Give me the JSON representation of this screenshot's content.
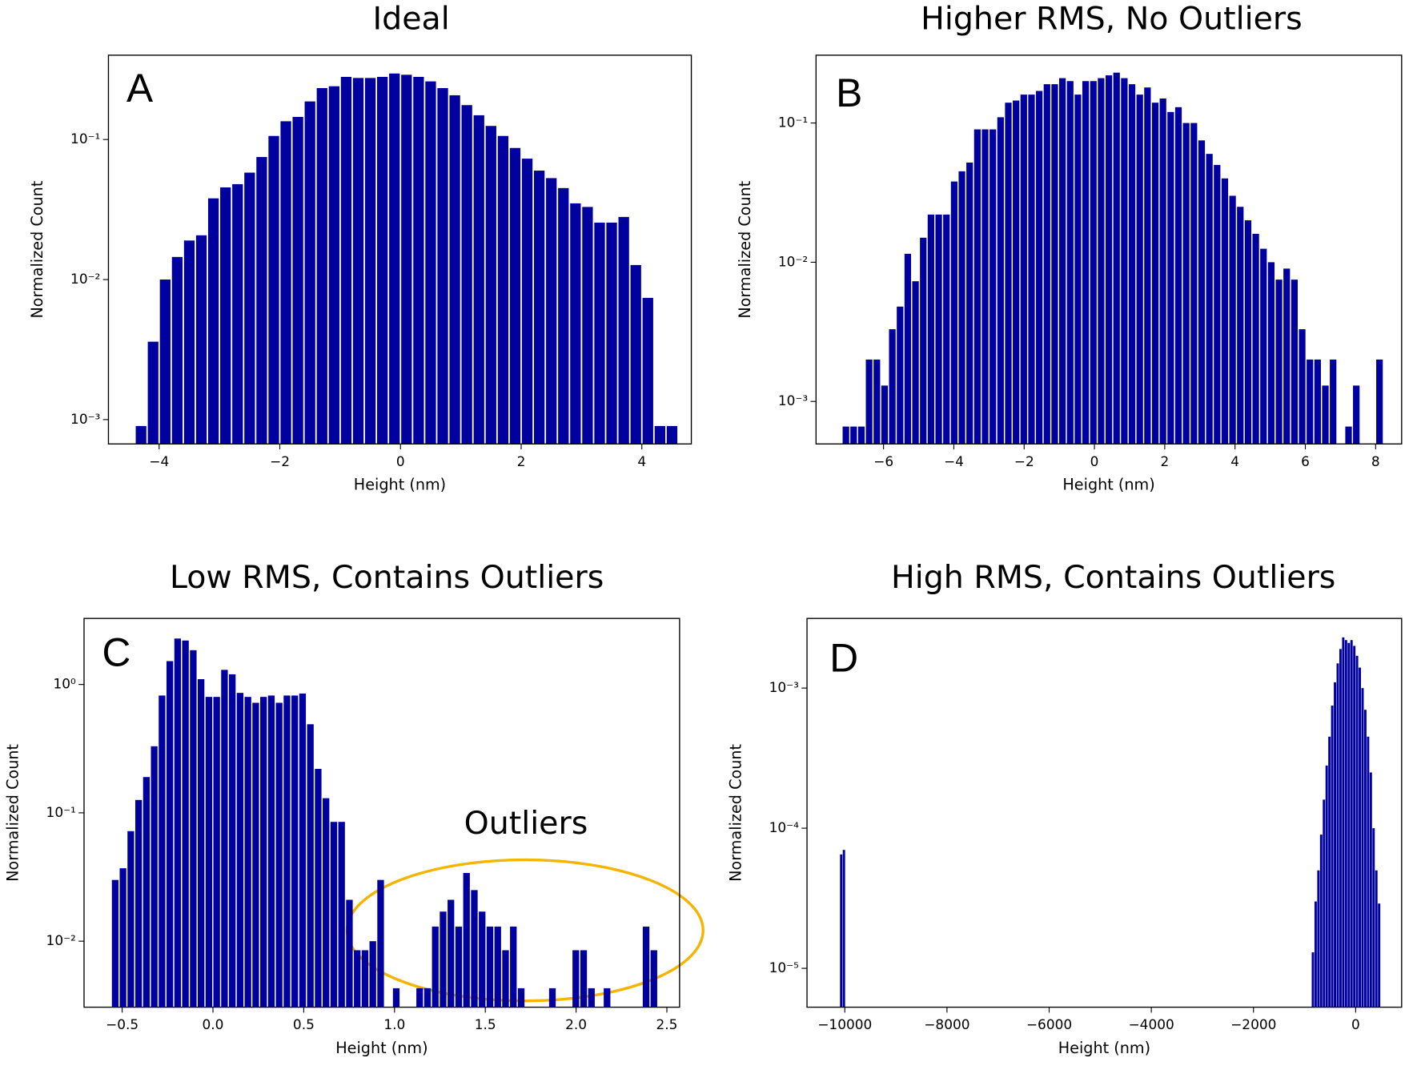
{
  "chart_data": [
    {
      "type": "histogram",
      "title": "Ideal",
      "panel_label": "A",
      "xlabel": "Height (nm)",
      "ylabel": "Normalized Count",
      "color": "#00009f",
      "log_y": true,
      "xlim": [
        -4.84,
        4.82
      ],
      "ylim": [
        0.00067,
        0.4
      ],
      "xticks": [
        {
          "value": -4,
          "label": "−4"
        },
        {
          "value": -2,
          "label": "−2"
        },
        0,
        2,
        4
      ],
      "yticks": [
        {
          "value": 0.001,
          "label": "10⁻³"
        },
        {
          "value": 0.01,
          "label": "10⁻²"
        },
        {
          "value": 0.1,
          "label": "10⁻¹"
        }
      ],
      "bins": [
        -4.4,
        -4.2,
        -4.0,
        -3.8,
        -3.6,
        -3.4,
        -3.2,
        -3.0,
        -2.8,
        -2.6,
        -2.4,
        -2.2,
        -2.0,
        -1.8,
        -1.6,
        -1.4,
        -1.2,
        -1.0,
        -0.8,
        -0.6,
        -0.4,
        -0.2,
        0,
        0.2,
        0.4,
        0.6,
        0.8,
        1.0,
        1.2,
        1.4,
        1.6,
        1.8,
        2.0,
        2.2,
        2.4,
        2.6,
        2.8,
        3.0,
        3.2,
        3.4,
        3.6,
        3.8,
        4.0,
        4.2,
        4.4,
        4.6
      ],
      "values": [
        0.0009,
        0.0036,
        0.01,
        0.0145,
        0.019,
        0.0207,
        0.038,
        0.0455,
        0.048,
        0.058,
        0.075,
        0.106,
        0.135,
        0.145,
        0.187,
        0.233,
        0.24,
        0.28,
        0.275,
        0.275,
        0.28,
        0.296,
        0.29,
        0.28,
        0.26,
        0.233,
        0.207,
        0.176,
        0.149,
        0.125,
        0.106,
        0.087,
        0.073,
        0.06,
        0.053,
        0.045,
        0.035,
        0.033,
        0.0255,
        0.0255,
        0.028,
        0.0127,
        0.0074,
        0.0009,
        0.0009
      ]
    },
    {
      "type": "histogram",
      "title": "Higher RMS, No Outliers",
      "panel_label": "B",
      "xlabel": "Height (nm)",
      "ylabel": "Normalized Count",
      "color": "#00009f",
      "log_y": true,
      "xlim": [
        -7.92,
        8.74
      ],
      "ylim": [
        0.000495,
        0.307
      ],
      "xticks": [
        {
          "value": -6,
          "label": "−6"
        },
        {
          "value": -4,
          "label": "−4"
        },
        {
          "value": -2,
          "label": "−2"
        },
        0,
        2,
        4,
        6,
        8
      ],
      "yticks": [
        {
          "value": 0.001,
          "label": "10⁻³"
        },
        {
          "value": 0.01,
          "label": "10⁻²"
        },
        {
          "value": 0.1,
          "label": "10⁻¹"
        }
      ],
      "bins": [
        -7.18,
        -6.96,
        -6.74,
        -6.52,
        -6.3,
        -6.08,
        -5.86,
        -5.64,
        -5.42,
        -5.2,
        -4.98,
        -4.76,
        -4.54,
        -4.32,
        -4.1,
        -3.88,
        -3.66,
        -3.44,
        -3.22,
        -3.0,
        -2.78,
        -2.56,
        -2.34,
        -2.12,
        -1.9,
        -1.68,
        -1.46,
        -1.24,
        -1.02,
        -0.8,
        -0.58,
        -0.36,
        -0.14,
        0.08,
        0.3,
        0.52,
        0.74,
        0.96,
        1.18,
        1.4,
        1.62,
        1.84,
        2.06,
        2.28,
        2.5,
        2.72,
        2.94,
        3.16,
        3.38,
        3.6,
        3.82,
        4.04,
        4.26,
        4.48,
        4.7,
        4.92,
        5.14,
        5.36,
        5.58,
        5.8,
        6.02,
        6.24,
        6.46,
        6.68,
        6.9,
        7.12,
        7.34,
        7.56,
        7.78,
        8.0,
        8.22
      ],
      "values": [
        0.00066,
        0.00066,
        0.00066,
        0.002,
        0.002,
        0.0013,
        0.0033,
        0.0048,
        0.0115,
        0.0073,
        0.015,
        0.022,
        0.022,
        0.022,
        0.038,
        0.045,
        0.052,
        0.09,
        0.09,
        0.09,
        0.11,
        0.14,
        0.145,
        0.16,
        0.16,
        0.17,
        0.19,
        0.19,
        0.21,
        0.2,
        0.16,
        0.2,
        0.2,
        0.21,
        0.22,
        0.23,
        0.21,
        0.19,
        0.16,
        0.18,
        0.14,
        0.15,
        0.12,
        0.13,
        0.1,
        0.1,
        0.075,
        0.06,
        0.05,
        0.04,
        0.03,
        0.025,
        0.02,
        0.016,
        0.0125,
        0.01,
        0.0075,
        0.009,
        0.0075,
        0.0033,
        0.002,
        0.002,
        0.0013,
        0.002,
        0,
        0.00066,
        0.0013,
        0,
        0,
        0.002
      ]
    },
    {
      "type": "histogram",
      "title": "Low RMS, Contains Outliers",
      "panel_label": "C",
      "xlabel": "Height (nm)",
      "ylabel": "Normalized Count",
      "color": "#00009f",
      "log_y": true,
      "annotation": "Outliers",
      "xlim": [
        -0.71,
        2.57
      ],
      "ylim": [
        0.00306,
        3.27
      ],
      "xticks": [
        {
          "value": -0.5,
          "label": "−0.5"
        },
        {
          "value": 0,
          "label": "0.0"
        },
        0.5,
        {
          "value": 1,
          "label": "1.0"
        },
        1.5,
        {
          "value": 2,
          "label": "2.0"
        },
        2.5
      ],
      "yticks": [
        {
          "value": 0.01,
          "label": "10⁻²"
        },
        {
          "value": 0.1,
          "label": "10⁻¹"
        },
        {
          "value": 1,
          "label": "10⁰"
        }
      ],
      "bins": [
        -0.56,
        -0.517,
        -0.474,
        -0.431,
        -0.388,
        -0.345,
        -0.302,
        -0.259,
        -0.216,
        -0.173,
        -0.13,
        -0.087,
        -0.044,
        -0.001,
        0.042,
        0.085,
        0.128,
        0.171,
        0.214,
        0.257,
        0.3,
        0.343,
        0.386,
        0.429,
        0.472,
        0.515,
        0.558,
        0.601,
        0.644,
        0.687,
        0.73,
        0.773,
        0.816,
        0.859,
        0.902,
        0.945,
        0.988,
        1.031,
        1.074,
        1.117,
        1.16,
        1.203,
        1.246,
        1.289,
        1.332,
        1.375,
        1.418,
        1.461,
        1.504,
        1.547,
        1.59,
        1.633,
        1.676,
        1.719,
        1.762,
        1.805,
        1.848,
        1.891,
        1.934,
        1.977,
        2.02,
        2.063,
        2.106,
        2.149,
        2.192,
        2.235,
        2.278,
        2.321,
        2.364,
        2.407,
        2.45
      ],
      "values": [
        0.03,
        0.037,
        0.072,
        0.126,
        0.19,
        0.33,
        0.82,
        1.52,
        2.28,
        2.2,
        1.85,
        1.1,
        0.8,
        0.8,
        1.3,
        1.2,
        0.86,
        0.8,
        0.72,
        0.8,
        0.82,
        0.72,
        0.82,
        0.82,
        0.85,
        0.49,
        0.22,
        0.13,
        0.085,
        0.085,
        0.021,
        0.0085,
        0.0085,
        0.01,
        0.03,
        0,
        0.0043,
        0,
        0,
        0.0043,
        0.0043,
        0.013,
        0.017,
        0.021,
        0.013,
        0.034,
        0.025,
        0.017,
        0.013,
        0.013,
        0.0085,
        0.013,
        0.0043,
        0,
        0,
        0,
        0.0043,
        0,
        0,
        0.0085,
        0.0085,
        0.0043,
        0,
        0.0043,
        0,
        0,
        0,
        0,
        0.013,
        0.0085
      ]
    },
    {
      "type": "histogram",
      "title": "High RMS, Contains Outliers",
      "panel_label": "D",
      "xlabel": "Height (nm)",
      "ylabel": "Normalized Count",
      "color": "#00009f",
      "log_y": true,
      "xlim": [
        -10740,
        900
      ],
      "ylim": [
        5.28e-06,
        0.00314
      ],
      "xticks": [
        {
          "value": -10000,
          "label": "−10000"
        },
        {
          "value": -8000,
          "label": "−8000"
        },
        {
          "value": -6000,
          "label": "−6000"
        },
        {
          "value": -4000,
          "label": "−4000"
        },
        {
          "value": -2000,
          "label": "−2000"
        },
        0
      ],
      "yticks": [
        {
          "value": 1e-05,
          "label": "10⁻⁵"
        },
        {
          "value": 0.0001,
          "label": "10⁻⁴"
        },
        {
          "value": 0.001,
          "label": "10⁻³"
        }
      ],
      "bins": [
        -10098,
        -10044,
        -9990,
        -864,
        -810,
        -756,
        -702,
        -648,
        -594,
        -540,
        -486,
        -432,
        -378,
        -324,
        -270,
        -216,
        -162,
        -108,
        -54,
        0,
        54,
        108,
        162,
        216,
        270,
        324,
        378,
        432,
        486
      ],
      "values": [
        6.5e-05,
        7e-05,
        0,
        1.3e-05,
        3e-05,
        5e-05,
        9e-05,
        0.00016,
        0.00028,
        0.00045,
        0.00075,
        0.0011,
        0.0015,
        0.0019,
        0.0023,
        0.0022,
        0.0021,
        0.0022,
        0.002,
        0.0017,
        0.0014,
        0.001,
        0.0007,
        0.00045,
        0.00025,
        0.0001,
        5e-05,
        2.9e-05
      ]
    }
  ]
}
